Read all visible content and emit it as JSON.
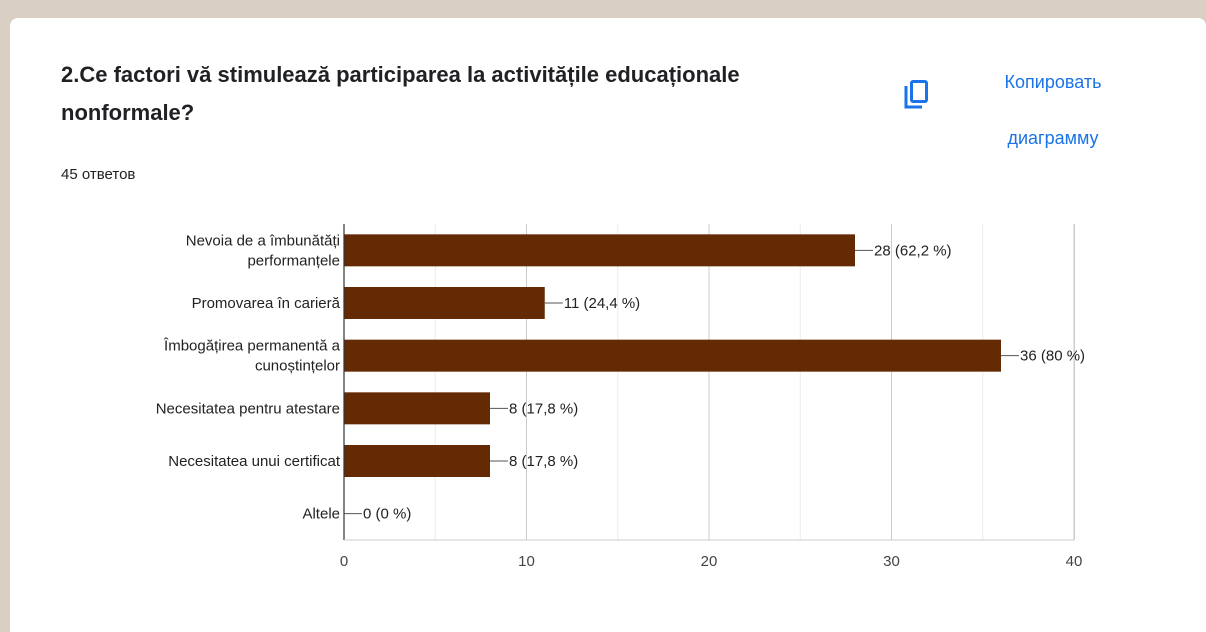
{
  "question": {
    "title": "2.Ce factori vă stimulează participarea la activitățile educaționale nonformale?",
    "responses": "45 ответов"
  },
  "actions": {
    "copy_label_line1": "Копировать",
    "copy_label_line2": "диаграмму",
    "copy_icon": "copy-icon"
  },
  "colors": {
    "bar": "#642a04",
    "link": "#1a73e8"
  },
  "chart_data": {
    "type": "bar",
    "orientation": "horizontal",
    "categories": [
      [
        "Nevoia de a îmbunătăți",
        "performanțele"
      ],
      [
        "Promovarea în carieră"
      ],
      [
        "Îmbogățirea permanentă a",
        "cunoștințelor"
      ],
      [
        "Necesitatea pentru atestare"
      ],
      [
        "Necesitatea unui certificat"
      ],
      [
        "Altele"
      ]
    ],
    "values": [
      28,
      11,
      36,
      8,
      8,
      0
    ],
    "data_labels": [
      "28 (62,2 %)",
      "11 (24,4 %)",
      "36 (80 %)",
      "8 (17,8 %)",
      "8 (17,8 %)",
      "0 (0 %)"
    ],
    "xlim": [
      0,
      40
    ],
    "xticks": [
      0,
      10,
      20,
      30,
      40
    ],
    "grid": true
  }
}
